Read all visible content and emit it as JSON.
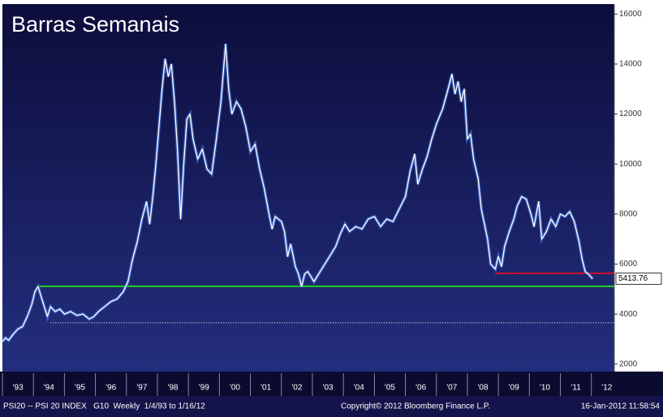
{
  "chart_data": {
    "type": "line",
    "title": "Barras Semanais",
    "footer": {
      "left": "PSI20 -- PSI 20 INDEX   G10  Weekly  1/4/93 to 1/16/12",
      "center": "Copyright© 2012 Bloomberg Finance L.P.",
      "right": "16-Jan-2012 11:58:54"
    },
    "xlim": [
      1993,
      2012.74
    ],
    "ylim": [
      1700,
      16400
    ],
    "yticks": [
      2000,
      4000,
      6000,
      8000,
      10000,
      12000,
      14000,
      16000
    ],
    "xticks": [
      {
        "value": 1993.5,
        "label": "'93"
      },
      {
        "value": 1994.5,
        "label": "'94"
      },
      {
        "value": 1995.5,
        "label": "'95"
      },
      {
        "value": 1996.5,
        "label": "'96"
      },
      {
        "value": 1997.5,
        "label": "'97"
      },
      {
        "value": 1998.5,
        "label": "'98"
      },
      {
        "value": 1999.5,
        "label": "'99"
      },
      {
        "value": 2000.5,
        "label": "'00"
      },
      {
        "value": 2001.5,
        "label": "'01"
      },
      {
        "value": 2002.5,
        "label": "'02"
      },
      {
        "value": 2003.5,
        "label": "'03"
      },
      {
        "value": 2004.5,
        "label": "'04"
      },
      {
        "value": 2005.5,
        "label": "'05"
      },
      {
        "value": 2006.5,
        "label": "'06"
      },
      {
        "value": 2007.5,
        "label": "'07"
      },
      {
        "value": 2008.5,
        "label": "'08"
      },
      {
        "value": 2009.5,
        "label": "'09"
      },
      {
        "value": 2010.5,
        "label": "'10"
      },
      {
        "value": 2011.5,
        "label": "'11"
      },
      {
        "value": 2012.5,
        "label": "'12"
      }
    ],
    "hlines": [
      {
        "value": 5110,
        "from": 1994.2,
        "color": "#1fd21f",
        "style": "solid"
      },
      {
        "value": 5630,
        "from": 2008.9,
        "color": "#d0102a",
        "style": "solid"
      },
      {
        "value": 3650,
        "from": 1994.55,
        "color": "#ffffff",
        "style": "dotted"
      }
    ],
    "series": [
      {
        "name": "PSI 20",
        "color": "#ffffff",
        "x": [
          1993.0,
          1993.1,
          1993.2,
          1993.35,
          1993.5,
          1993.65,
          1993.8,
          1993.95,
          1994.05,
          1994.15,
          1994.25,
          1994.35,
          1994.45,
          1994.55,
          1994.7,
          1994.85,
          1995.0,
          1995.2,
          1995.4,
          1995.6,
          1995.8,
          1995.95,
          1996.1,
          1996.3,
          1996.5,
          1996.7,
          1996.9,
          1997.05,
          1997.2,
          1997.35,
          1997.5,
          1997.65,
          1997.75,
          1997.85,
          1997.95,
          1998.05,
          1998.15,
          1998.25,
          1998.35,
          1998.45,
          1998.55,
          1998.65,
          1998.75,
          1998.85,
          1998.95,
          1999.05,
          1999.15,
          1999.3,
          1999.45,
          1999.6,
          1999.75,
          1999.9,
          2000.05,
          2000.2,
          2000.3,
          2000.4,
          2000.55,
          2000.7,
          2000.85,
          2001.0,
          2001.15,
          2001.3,
          2001.45,
          2001.6,
          2001.7,
          2001.8,
          2001.9,
          2002.0,
          2002.1,
          2002.2,
          2002.3,
          2002.45,
          2002.55,
          2002.65,
          2002.75,
          2002.85,
          2002.95,
          2003.05,
          2003.15,
          2003.3,
          2003.45,
          2003.6,
          2003.75,
          2003.9,
          2004.05,
          2004.2,
          2004.4,
          2004.6,
          2004.8,
          2005.0,
          2005.2,
          2005.4,
          2005.6,
          2005.8,
          2006.0,
          2006.15,
          2006.3,
          2006.4,
          2006.55,
          2006.7,
          2006.85,
          2007.0,
          2007.2,
          2007.4,
          2007.5,
          2007.6,
          2007.7,
          2007.8,
          2007.9,
          2008.0,
          2008.1,
          2008.2,
          2008.35,
          2008.45,
          2008.55,
          2008.65,
          2008.75,
          2008.9,
          2009.0,
          2009.1,
          2009.2,
          2009.35,
          2009.5,
          2009.6,
          2009.75,
          2009.9,
          2010.05,
          2010.15,
          2010.3,
          2010.4,
          2010.55,
          2010.7,
          2010.85,
          2011.0,
          2011.15,
          2011.3,
          2011.45,
          2011.6,
          2011.7,
          2011.8,
          2011.9,
          2012.04
        ],
        "values": [
          2900,
          3050,
          2950,
          3200,
          3400,
          3500,
          3900,
          4400,
          4900,
          5100,
          4700,
          4300,
          3900,
          4300,
          4100,
          4200,
          4000,
          4100,
          3950,
          4000,
          3800,
          3900,
          4100,
          4300,
          4500,
          4600,
          4900,
          5300,
          6200,
          6900,
          7800,
          8500,
          7600,
          8700,
          10000,
          11500,
          13000,
          14200,
          13500,
          14000,
          12500,
          10500,
          7800,
          10000,
          11800,
          12000,
          11000,
          10200,
          10600,
          9800,
          9600,
          11000,
          12500,
          14800,
          13000,
          12000,
          12500,
          12200,
          11500,
          10500,
          10800,
          9800,
          9000,
          8000,
          7400,
          7900,
          7800,
          7700,
          7300,
          6300,
          6800,
          5900,
          5600,
          5100,
          5600,
          5700,
          5500,
          5300,
          5500,
          5800,
          6100,
          6400,
          6700,
          7200,
          7600,
          7300,
          7500,
          7400,
          7800,
          7900,
          7500,
          7800,
          7700,
          8200,
          8700,
          9700,
          10400,
          9200,
          9800,
          10300,
          11000,
          11600,
          12200,
          13100,
          13600,
          12800,
          13300,
          12500,
          13000,
          11000,
          11200,
          10200,
          9400,
          8200,
          7600,
          7000,
          6000,
          5800,
          6300,
          5900,
          6700,
          7300,
          7800,
          8300,
          8700,
          8600,
          8000,
          7500,
          8500,
          7000,
          7300,
          7800,
          7500,
          8000,
          7900,
          8100,
          7700,
          6900,
          6200,
          5700,
          5600,
          5413.76
        ]
      }
    ]
  }
}
